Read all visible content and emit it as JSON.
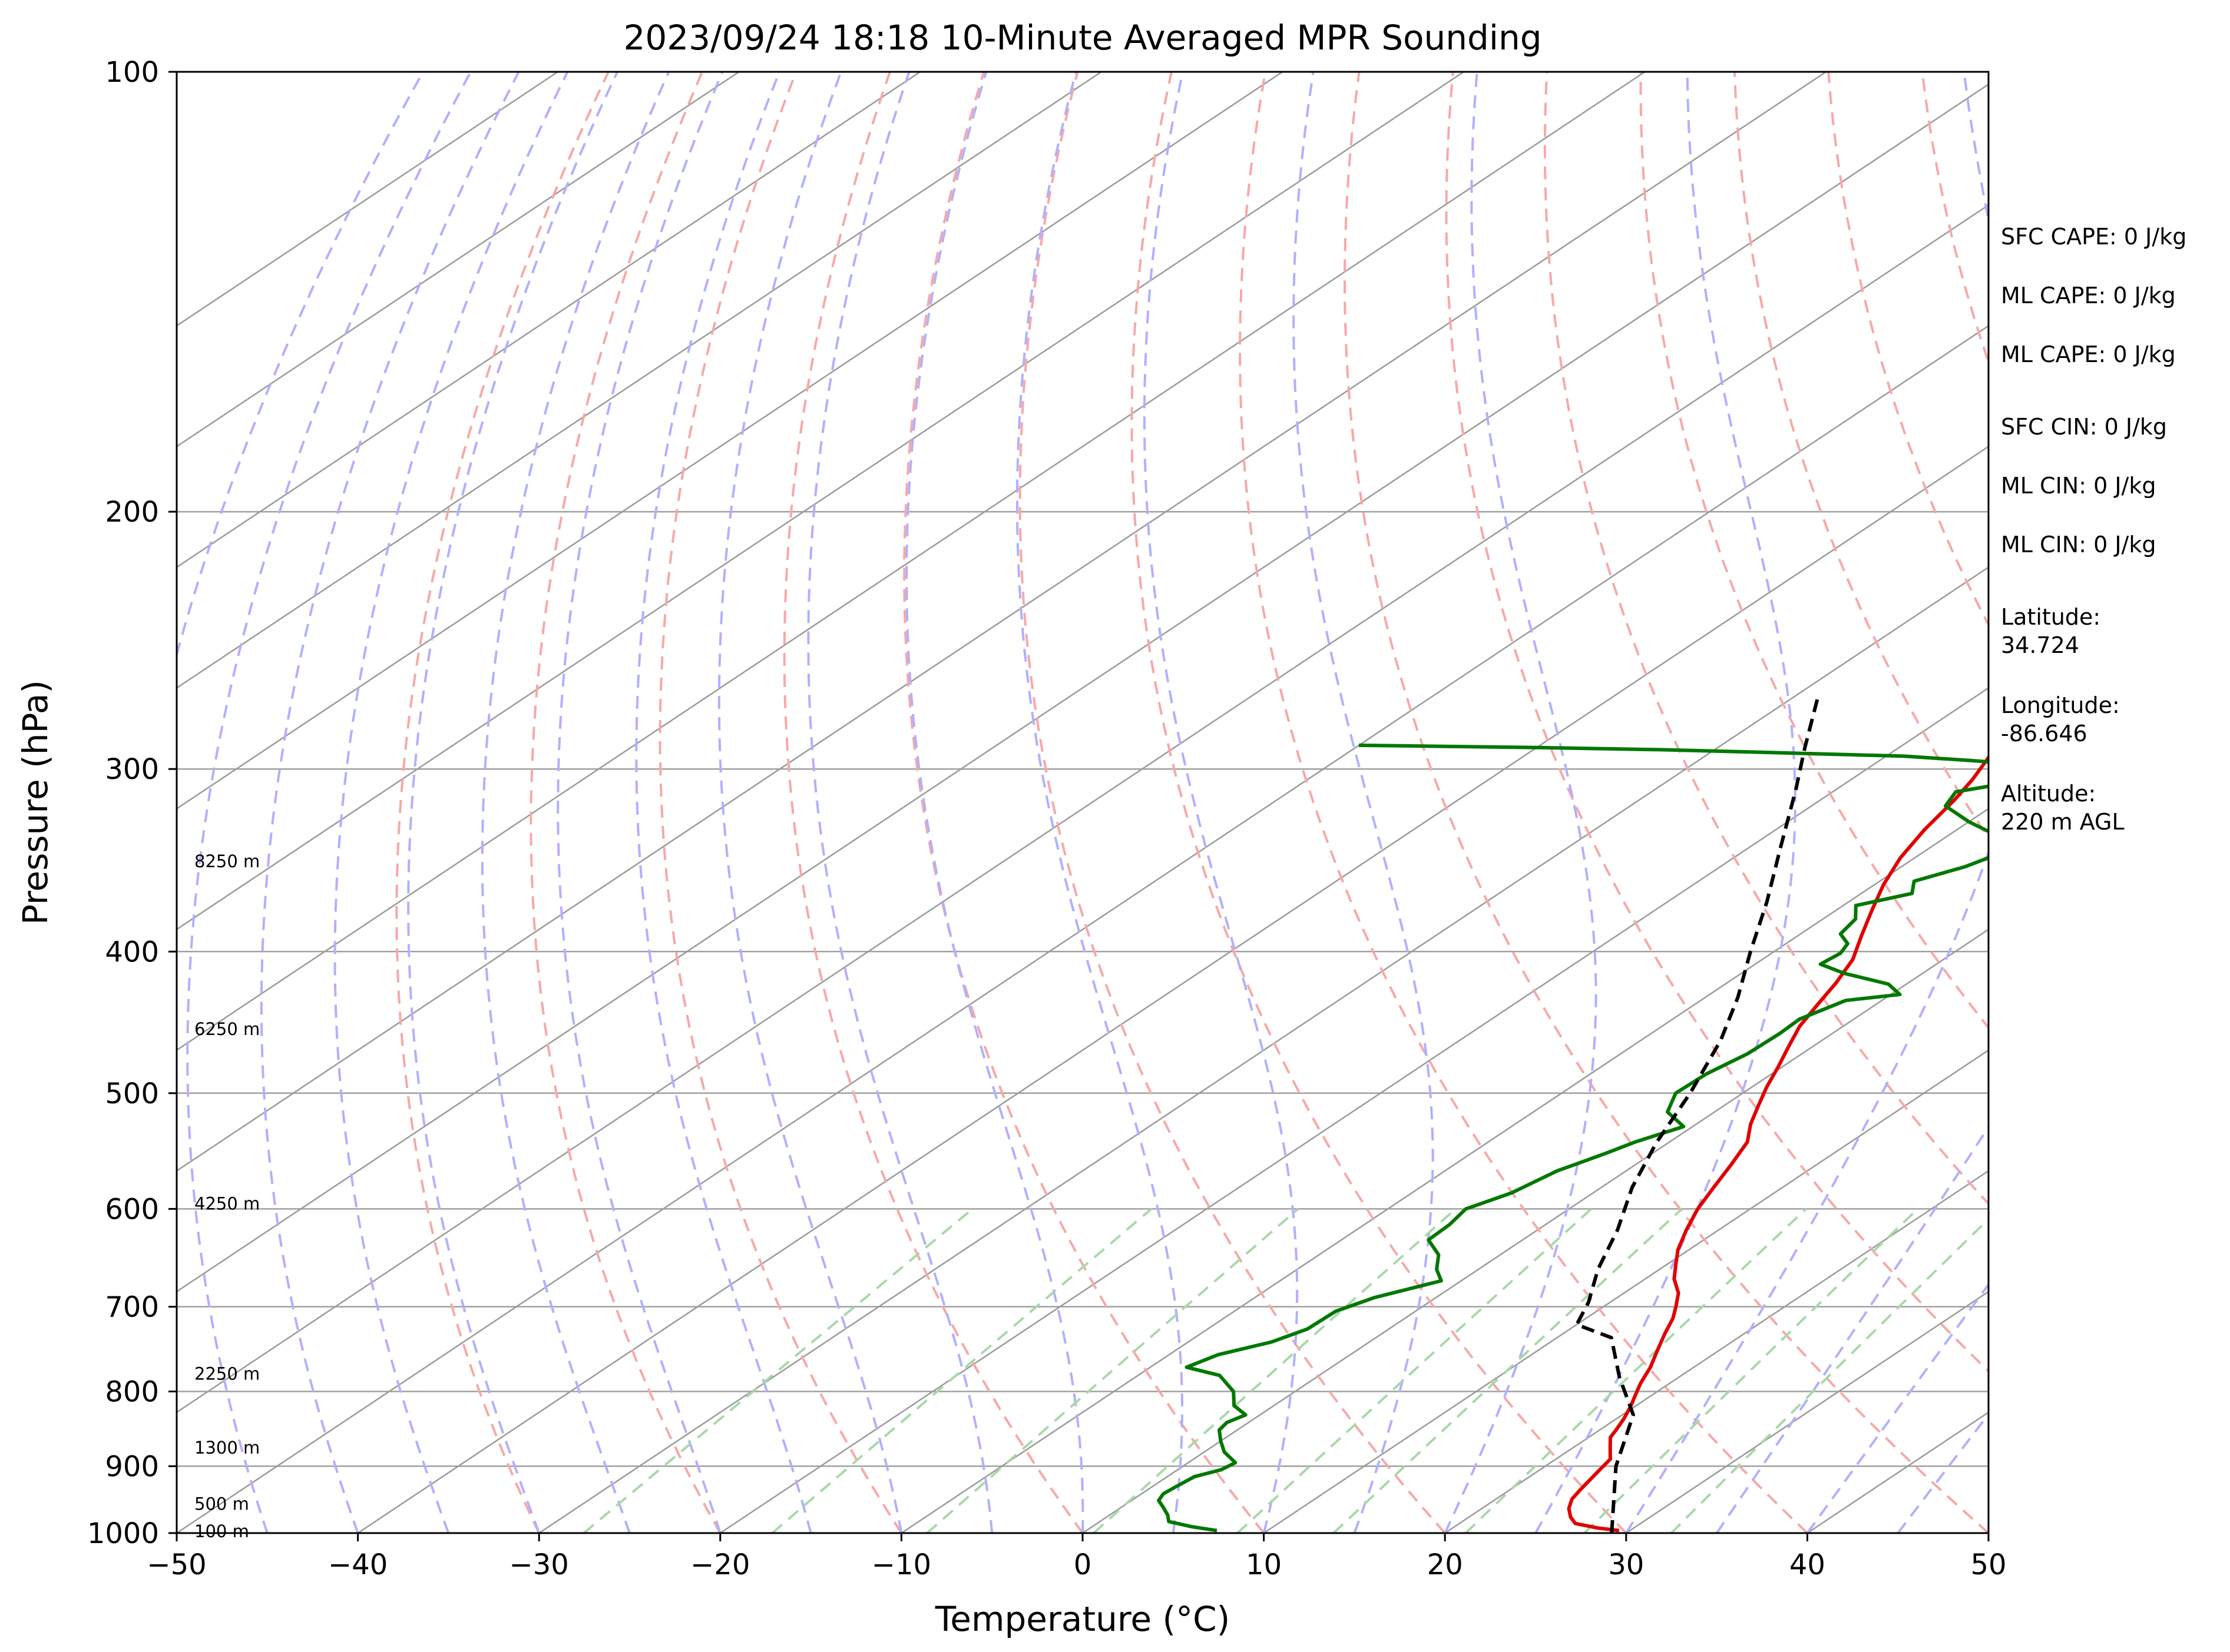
{
  "chart_data": {
    "type": "line",
    "subtype": "skew-T log-p sounding",
    "title": "2023/09/24 18:18 10-Minute Averaged MPR Sounding",
    "xlabel": "Temperature (°C)",
    "ylabel": "Pressure (hPa)",
    "xlim": [
      -50,
      50
    ],
    "ylim": [
      1000,
      100
    ],
    "y_scale": "log",
    "x_ticks": [
      "−50",
      "−40",
      "−30",
      "−20",
      "−10",
      "0",
      "10",
      "20",
      "30",
      "40",
      "50"
    ],
    "y_ticks": [
      "1000",
      "900",
      "800",
      "700",
      "600",
      "500",
      "400",
      "300",
      "200",
      "100"
    ],
    "height_labels": [
      {
        "p": 347,
        "text": "8250 m"
      },
      {
        "p": 452,
        "text": "6250 m"
      },
      {
        "p": 595,
        "text": "4250 m"
      },
      {
        "p": 778,
        "text": "2250 m"
      },
      {
        "p": 874,
        "text": "1300 m"
      },
      {
        "p": 955,
        "text": "500 m"
      },
      {
        "p": 997,
        "text": "100 m"
      }
    ],
    "series": [
      {
        "role": "temperature",
        "color": "#e00000",
        "points": [
          [
            996,
            29.4
          ],
          [
            992,
            28.0
          ],
          [
            985,
            26.4
          ],
          [
            975,
            25.6
          ],
          [
            962,
            24.8
          ],
          [
            948,
            24.2
          ],
          [
            935,
            23.9
          ],
          [
            920,
            23.6
          ],
          [
            905,
            23.3
          ],
          [
            890,
            23.0
          ],
          [
            875,
            22.1
          ],
          [
            860,
            21.2
          ],
          [
            850,
            20.9
          ],
          [
            835,
            20.4
          ],
          [
            820,
            19.8
          ],
          [
            805,
            19.1
          ],
          [
            790,
            18.4
          ],
          [
            770,
            17.6
          ],
          [
            750,
            16.6
          ],
          [
            730,
            15.6
          ],
          [
            713,
            14.8
          ],
          [
            700,
            14.0
          ],
          [
            685,
            13.0
          ],
          [
            670,
            11.6
          ],
          [
            655,
            10.5
          ],
          [
            640,
            9.4
          ],
          [
            620,
            8.2
          ],
          [
            600,
            7.1
          ],
          [
            580,
            6.2
          ],
          [
            560,
            5.3
          ],
          [
            540,
            4.3
          ],
          [
            525,
            3.0
          ],
          [
            510,
            1.9
          ],
          [
            495,
            0.8
          ],
          [
            480,
            -0.2
          ],
          [
            465,
            -1.3
          ],
          [
            450,
            -2.4
          ],
          [
            435,
            -3.2
          ],
          [
            420,
            -4.0
          ],
          [
            405,
            -5.0
          ],
          [
            390,
            -6.5
          ],
          [
            375,
            -8.0
          ],
          [
            360,
            -9.5
          ],
          [
            345,
            -10.8
          ],
          [
            330,
            -11.8
          ],
          [
            315,
            -12.6
          ],
          [
            305,
            -13.3
          ],
          [
            295,
            -14.2
          ],
          [
            285,
            -15.3
          ],
          [
            275,
            -16.5
          ],
          [
            268,
            -17.3
          ]
        ]
      },
      {
        "role": "dewpoint",
        "color": "#007800",
        "points": [
          [
            996,
            7.2
          ],
          [
            990,
            5.5
          ],
          [
            982,
            3.8
          ],
          [
            972,
            3.2
          ],
          [
            960,
            2.3
          ],
          [
            950,
            1.5
          ],
          [
            940,
            1.2
          ],
          [
            930,
            1.3
          ],
          [
            915,
            1.5
          ],
          [
            905,
            2.4
          ],
          [
            895,
            2.6
          ],
          [
            880,
            1.1
          ],
          [
            865,
            0.0
          ],
          [
            850,
            -1.0
          ],
          [
            840,
            -1.2
          ],
          [
            830,
            -0.8
          ],
          [
            818,
            -2.2
          ],
          [
            800,
            -3.4
          ],
          [
            780,
            -5.5
          ],
          [
            770,
            -8.0
          ],
          [
            755,
            -7.3
          ],
          [
            740,
            -5.4
          ],
          [
            725,
            -4.5
          ],
          [
            705,
            -4.4
          ],
          [
            690,
            -3.4
          ],
          [
            672,
            -1.1
          ],
          [
            660,
            -2.3
          ],
          [
            645,
            -3.4
          ],
          [
            630,
            -5.2
          ],
          [
            615,
            -5.3
          ],
          [
            600,
            -5.7
          ],
          [
            585,
            -4.5
          ],
          [
            565,
            -3.8
          ],
          [
            550,
            -2.6
          ],
          [
            540,
            -1.9
          ],
          [
            527,
            -0.5
          ],
          [
            515,
            -2.6
          ],
          [
            500,
            -3.7
          ],
          [
            485,
            -3.6
          ],
          [
            470,
            -3.0
          ],
          [
            455,
            -2.9
          ],
          [
            445,
            -3.0
          ],
          [
            432,
            -2.0
          ],
          [
            428,
            0.5
          ],
          [
            421,
            -1.0
          ],
          [
            414,
            -4.3
          ],
          [
            408,
            -6.4
          ],
          [
            401,
            -6.2
          ],
          [
            395,
            -6.6
          ],
          [
            389,
            -7.8
          ],
          [
            380,
            -8.2
          ],
          [
            372,
            -9.3
          ],
          [
            365,
            -7.2
          ],
          [
            358,
            -8.1
          ],
          [
            350,
            -6.5
          ],
          [
            342,
            -5.6
          ],
          [
            334,
            -7.0
          ],
          [
            326,
            -10.0
          ],
          [
            318,
            -12.6
          ],
          [
            311,
            -13.2
          ],
          [
            305,
            -10.2
          ],
          [
            300,
            -7.8
          ],
          [
            296,
            -15.0
          ],
          [
            294,
            -19.0
          ],
          [
            292,
            -28.0
          ],
          [
            291,
            -33.0
          ],
          [
            290,
            -40.0
          ],
          [
            289,
            -50.0
          ]
        ]
      },
      {
        "role": "parcel",
        "color": "#000000",
        "style": "dashed",
        "points": [
          [
            1000,
            29.2
          ],
          [
            900,
            23.9
          ],
          [
            830,
            20.6
          ],
          [
            782,
            16.7
          ],
          [
            735,
            13.0
          ],
          [
            720,
            10.0
          ],
          [
            695,
            8.8
          ],
          [
            660,
            6.6
          ],
          [
            620,
            4.4
          ],
          [
            580,
            1.7
          ],
          [
            540,
            -0.7
          ],
          [
            500,
            -2.9
          ],
          [
            460,
            -5.6
          ],
          [
            430,
            -8.2
          ],
          [
            400,
            -11.3
          ],
          [
            370,
            -14.5
          ],
          [
            340,
            -18.2
          ],
          [
            310,
            -22.2
          ],
          [
            290,
            -25.2
          ],
          [
            267,
            -28.8
          ]
        ]
      }
    ],
    "info": [
      {
        "lines": [
          "SFC CAPE: 0 J/kg"
        ]
      },
      {
        "lines": [
          "ML CAPE: 0 J/kg"
        ]
      },
      {
        "lines": [
          "ML CAPE: 0 J/kg"
        ]
      },
      {
        "lines": [
          "SFC CIN: 0 J/kg"
        ]
      },
      {
        "lines": [
          "ML CIN: 0 J/kg"
        ]
      },
      {
        "lines": [
          "ML CIN: 0 J/kg"
        ]
      },
      {
        "lines": [
          "Latitude:",
          "34.724"
        ]
      },
      {
        "lines": [
          "Longitude:",
          "-86.646"
        ]
      },
      {
        "lines": [
          "Altitude:",
          "220 m AGL"
        ]
      }
    ],
    "colors": {
      "isotherm": "#9a9a9a",
      "isobar": "#a0a0a0",
      "dry_adiabat": "#f7a8a8",
      "moist_adiabat": "#b0b0ff",
      "mixing_ratio": "#a8d8a8"
    }
  }
}
